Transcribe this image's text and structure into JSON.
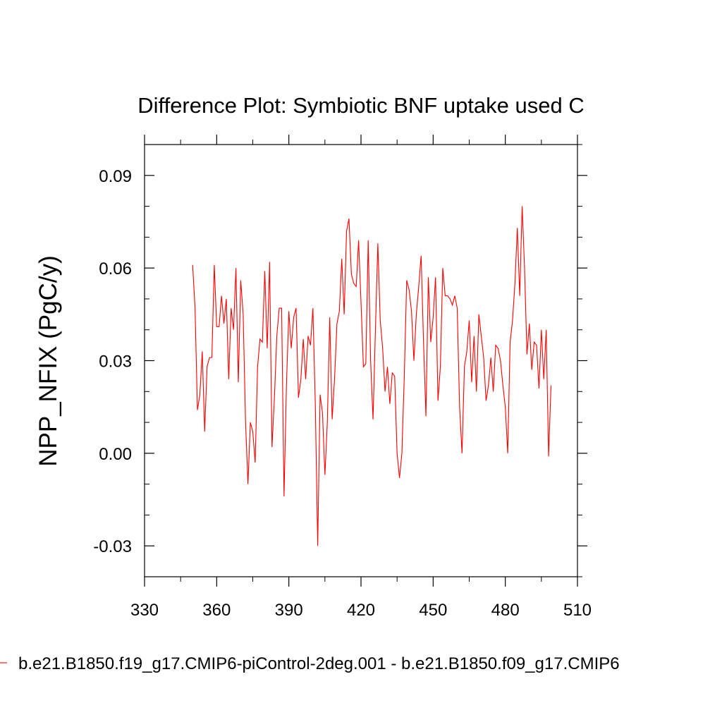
{
  "chart_data": {
    "type": "line",
    "title": "Difference Plot: Symbiotic BNF uptake used C",
    "xlabel": "",
    "ylabel": "NPP_NFIX  (PgC/y)",
    "xlim": [
      330,
      510
    ],
    "ylim": [
      -0.04,
      0.1
    ],
    "xticks": [
      330,
      360,
      390,
      420,
      450,
      480,
      510
    ],
    "xtick_labels": [
      "330",
      "360",
      "390",
      "420",
      "450",
      "480",
      "510"
    ],
    "yticks": [
      -0.03,
      0.0,
      0.03,
      0.06,
      0.09
    ],
    "ytick_labels": [
      "-0.03",
      "0.00",
      "0.03",
      "0.06",
      "0.09"
    ],
    "grid": false,
    "legend_position": "bottom",
    "series": [
      {
        "name": "b.e21.B1850.f19_g17.CMIP6-piControl-2deg.001 - b.e21.B1850.f09_g17.CMIP6",
        "color": "#ff0000",
        "x": [
          350,
          351,
          352,
          353,
          354,
          355,
          356,
          357,
          358,
          359,
          360,
          361,
          362,
          363,
          364,
          365,
          366,
          367,
          368,
          369,
          370,
          371,
          372,
          373,
          374,
          375,
          376,
          377,
          378,
          379,
          380,
          381,
          382,
          383,
          384,
          385,
          386,
          387,
          388,
          389,
          390,
          391,
          392,
          393,
          394,
          395,
          396,
          397,
          398,
          399,
          400,
          401,
          402,
          403,
          404,
          405,
          406,
          407,
          408,
          409,
          410,
          411,
          412,
          413,
          414,
          415,
          416,
          417,
          418,
          419,
          420,
          421,
          422,
          423,
          424,
          425,
          426,
          427,
          428,
          429,
          430,
          431,
          432,
          433,
          434,
          435,
          436,
          437,
          438,
          439,
          440,
          441,
          442,
          443,
          444,
          445,
          446,
          447,
          448,
          449,
          450,
          451,
          452,
          453,
          454,
          455,
          456,
          457,
          458,
          459,
          460,
          461,
          462,
          463,
          464,
          465,
          466,
          467,
          468,
          469,
          470,
          471,
          472,
          473,
          474,
          475,
          476,
          477,
          478,
          479,
          480,
          481,
          482,
          483,
          484,
          485,
          486,
          487,
          488,
          489,
          490,
          491,
          492,
          493,
          494,
          495,
          496,
          497,
          498,
          499
        ],
        "values": [
          0.061,
          0.047,
          0.014,
          0.019,
          0.033,
          0.007,
          0.028,
          0.031,
          0.031,
          0.061,
          0.041,
          0.041,
          0.051,
          0.042,
          0.05,
          0.024,
          0.047,
          0.04,
          0.06,
          0.023,
          0.056,
          0.045,
          0.01,
          -0.01,
          0.01,
          0.007,
          -0.003,
          0.028,
          0.037,
          0.036,
          0.059,
          0.034,
          0.062,
          0.002,
          0.018,
          0.038,
          0.047,
          0.047,
          -0.014,
          0.022,
          0.046,
          0.034,
          0.044,
          0.047,
          0.018,
          0.024,
          0.037,
          0.024,
          0.038,
          0.035,
          0.047,
          0.016,
          -0.03,
          0.019,
          0.013,
          -0.007,
          0.01,
          0.044,
          0.011,
          0.024,
          0.042,
          0.046,
          0.063,
          0.045,
          0.072,
          0.076,
          0.058,
          0.055,
          0.054,
          0.069,
          0.049,
          0.028,
          0.029,
          0.069,
          0.03,
          0.011,
          0.04,
          0.068,
          0.043,
          0.034,
          0.02,
          0.028,
          0.016,
          0.026,
          0.025,
          0.0,
          -0.008,
          0.0,
          0.025,
          0.056,
          0.053,
          0.046,
          0.03,
          0.045,
          0.054,
          0.064,
          0.036,
          0.012,
          0.057,
          0.036,
          0.044,
          0.057,
          0.017,
          0.028,
          0.06,
          0.051,
          0.051,
          0.05,
          0.048,
          0.051,
          0.047,
          0.015,
          0.0,
          0.028,
          0.033,
          0.043,
          0.023,
          0.038,
          0.02,
          0.045,
          0.038,
          0.031,
          0.017,
          0.022,
          0.031,
          0.02,
          0.035,
          0.034,
          0.03,
          0.022,
          0.015,
          0.0,
          0.036,
          0.043,
          0.055,
          0.073,
          0.051,
          0.08,
          0.06,
          0.032,
          0.042,
          0.027,
          0.036,
          0.035,
          0.021,
          0.04,
          0.024,
          0.04,
          -0.001,
          0.022
        ]
      }
    ]
  }
}
